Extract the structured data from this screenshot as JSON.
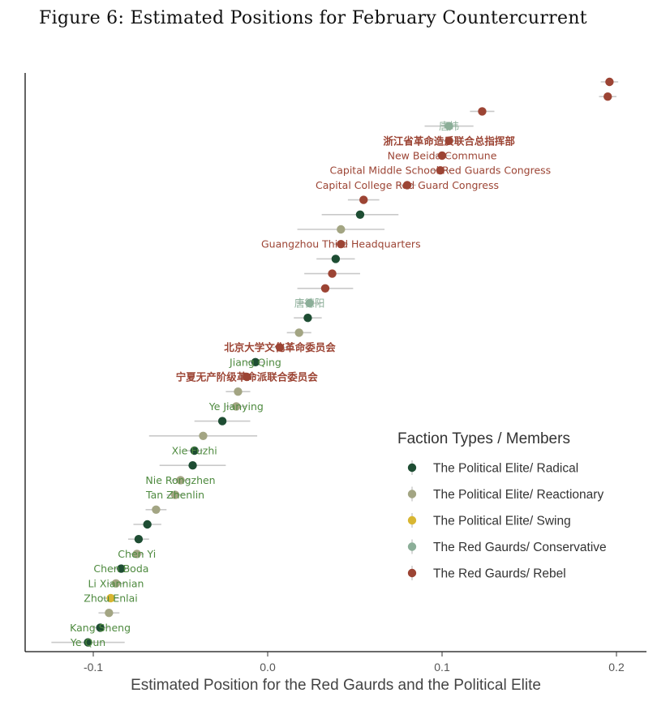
{
  "title": "Figure 6: Estimated Positions for February Countercurrent",
  "colors": {
    "radical": "#1e4d33",
    "reactionary": "#a3a583",
    "swing": "#d8b632",
    "conservative": "#8bae98",
    "rebel": "#9c4434",
    "interval": "#c9c9c9",
    "label_elite": "#4e8a3f"
  },
  "chart_data": {
    "type": "scatter",
    "title": "Figure 6: Estimated Positions for February Countercurrent",
    "xlabel": "Estimated Position for the Red Gaurds and the Political Elite",
    "ylabel": "",
    "xlim": [
      -0.14,
      0.22
    ],
    "xticks": [
      -0.1,
      0.0,
      0.1,
      0.2
    ],
    "xtick_labels": [
      "-0.1",
      "0.0",
      "0.1",
      "0.2"
    ],
    "grid": false,
    "legend": {
      "title": "Faction Types / Members",
      "position": "right",
      "entries": [
        {
          "key": "radical",
          "label": "The Political Elite/ Radical"
        },
        {
          "key": "reactionary",
          "label": "The Political Elite/ Reactionary"
        },
        {
          "key": "swing",
          "label": "The Political Elite/ Swing"
        },
        {
          "key": "conservative",
          "label": "The Red Gaurds/ Conservative"
        },
        {
          "key": "rebel",
          "label": "The Red Gaurds/ Rebel"
        }
      ]
    },
    "points": [
      {
        "rank": 1,
        "x": 0.196,
        "lo": 0.191,
        "hi": 0.201,
        "type": "rebel",
        "label": ""
      },
      {
        "rank": 2,
        "x": 0.195,
        "lo": 0.19,
        "hi": 0.2,
        "type": "rebel",
        "label": ""
      },
      {
        "rank": 3,
        "x": 0.123,
        "lo": 0.116,
        "hi": 0.13,
        "type": "rebel",
        "label": ""
      },
      {
        "rank": 4,
        "x": 0.104,
        "lo": 0.09,
        "hi": 0.118,
        "type": "conservative",
        "label": "唐炜"
      },
      {
        "rank": 5,
        "x": 0.104,
        "lo": 0.098,
        "hi": 0.11,
        "type": "rebel",
        "label": "浙江省革命造反联合总指挥部"
      },
      {
        "rank": 6,
        "x": 0.1,
        "lo": 0.095,
        "hi": 0.105,
        "type": "rebel",
        "label": "New Beida Commune"
      },
      {
        "rank": 7,
        "x": 0.099,
        "lo": 0.094,
        "hi": 0.104,
        "type": "rebel",
        "label": "Capital Middle School Red Guards Congress"
      },
      {
        "rank": 8,
        "x": 0.08,
        "lo": 0.075,
        "hi": 0.085,
        "type": "rebel",
        "label": "Capital College Red Guard Congress"
      },
      {
        "rank": 9,
        "x": 0.055,
        "lo": 0.046,
        "hi": 0.064,
        "type": "rebel",
        "label": ""
      },
      {
        "rank": 10,
        "x": 0.053,
        "lo": 0.031,
        "hi": 0.075,
        "type": "radical",
        "label": ""
      },
      {
        "rank": 11,
        "x": 0.042,
        "lo": 0.017,
        "hi": 0.067,
        "type": "reactionary",
        "label": ""
      },
      {
        "rank": 12,
        "x": 0.042,
        "lo": 0.038,
        "hi": 0.046,
        "type": "rebel",
        "label": "Guangzhou Third Headquarters"
      },
      {
        "rank": 13,
        "x": 0.039,
        "lo": 0.028,
        "hi": 0.05,
        "type": "radical",
        "label": ""
      },
      {
        "rank": 14,
        "x": 0.037,
        "lo": 0.021,
        "hi": 0.053,
        "type": "rebel",
        "label": ""
      },
      {
        "rank": 15,
        "x": 0.033,
        "lo": 0.017,
        "hi": 0.049,
        "type": "rebel",
        "label": ""
      },
      {
        "rank": 16,
        "x": 0.024,
        "lo": 0.017,
        "hi": 0.031,
        "type": "conservative",
        "label": "唐德阳"
      },
      {
        "rank": 17,
        "x": 0.023,
        "lo": 0.015,
        "hi": 0.031,
        "type": "radical",
        "label": ""
      },
      {
        "rank": 18,
        "x": 0.018,
        "lo": 0.011,
        "hi": 0.025,
        "type": "reactionary",
        "label": ""
      },
      {
        "rank": 19,
        "x": 0.007,
        "lo": 0.002,
        "hi": 0.012,
        "type": "rebel",
        "label": "北京大学文化革命委员会"
      },
      {
        "rank": 20,
        "x": -0.007,
        "lo": -0.012,
        "hi": -0.002,
        "type": "radical",
        "label": "Jiang Qing"
      },
      {
        "rank": 21,
        "x": -0.012,
        "lo": -0.017,
        "hi": -0.007,
        "type": "rebel",
        "label": "宁夏无产阶级革命派联合委员会"
      },
      {
        "rank": 22,
        "x": -0.017,
        "lo": -0.024,
        "hi": -0.01,
        "type": "reactionary",
        "label": ""
      },
      {
        "rank": 23,
        "x": -0.018,
        "lo": -0.024,
        "hi": -0.012,
        "type": "reactionary",
        "label": "Ye Jianying"
      },
      {
        "rank": 24,
        "x": -0.026,
        "lo": -0.042,
        "hi": -0.01,
        "type": "radical",
        "label": ""
      },
      {
        "rank": 25,
        "x": -0.037,
        "lo": -0.068,
        "hi": -0.006,
        "type": "reactionary",
        "label": ""
      },
      {
        "rank": 26,
        "x": -0.042,
        "lo": -0.047,
        "hi": -0.037,
        "type": "radical",
        "label": "Xie Fuzhi"
      },
      {
        "rank": 27,
        "x": -0.043,
        "lo": -0.062,
        "hi": -0.024,
        "type": "radical",
        "label": ""
      },
      {
        "rank": 28,
        "x": -0.05,
        "lo": -0.055,
        "hi": -0.045,
        "type": "reactionary",
        "label": "Nie Rongzhen"
      },
      {
        "rank": 29,
        "x": -0.053,
        "lo": -0.058,
        "hi": -0.048,
        "type": "reactionary",
        "label": "Tan Zhenlin"
      },
      {
        "rank": 30,
        "x": -0.064,
        "lo": -0.07,
        "hi": -0.058,
        "type": "reactionary",
        "label": ""
      },
      {
        "rank": 31,
        "x": -0.069,
        "lo": -0.077,
        "hi": -0.061,
        "type": "radical",
        "label": ""
      },
      {
        "rank": 32,
        "x": -0.074,
        "lo": -0.08,
        "hi": -0.068,
        "type": "radical",
        "label": ""
      },
      {
        "rank": 33,
        "x": -0.075,
        "lo": -0.079,
        "hi": -0.071,
        "type": "reactionary",
        "label": "Chen Yi"
      },
      {
        "rank": 34,
        "x": -0.084,
        "lo": -0.089,
        "hi": -0.079,
        "type": "radical",
        "label": "Chen Boda"
      },
      {
        "rank": 35,
        "x": -0.087,
        "lo": -0.092,
        "hi": -0.082,
        "type": "reactionary",
        "label": "Li Xiannian"
      },
      {
        "rank": 36,
        "x": -0.09,
        "lo": -0.095,
        "hi": -0.085,
        "type": "swing",
        "label": "Zhou Enlai"
      },
      {
        "rank": 37,
        "x": -0.091,
        "lo": -0.097,
        "hi": -0.085,
        "type": "reactionary",
        "label": ""
      },
      {
        "rank": 38,
        "x": -0.096,
        "lo": -0.101,
        "hi": -0.091,
        "type": "radical",
        "label": "Kang Sheng"
      },
      {
        "rank": 39,
        "x": -0.103,
        "lo": -0.124,
        "hi": -0.082,
        "type": "radical",
        "label": "Ye Qun"
      }
    ]
  }
}
